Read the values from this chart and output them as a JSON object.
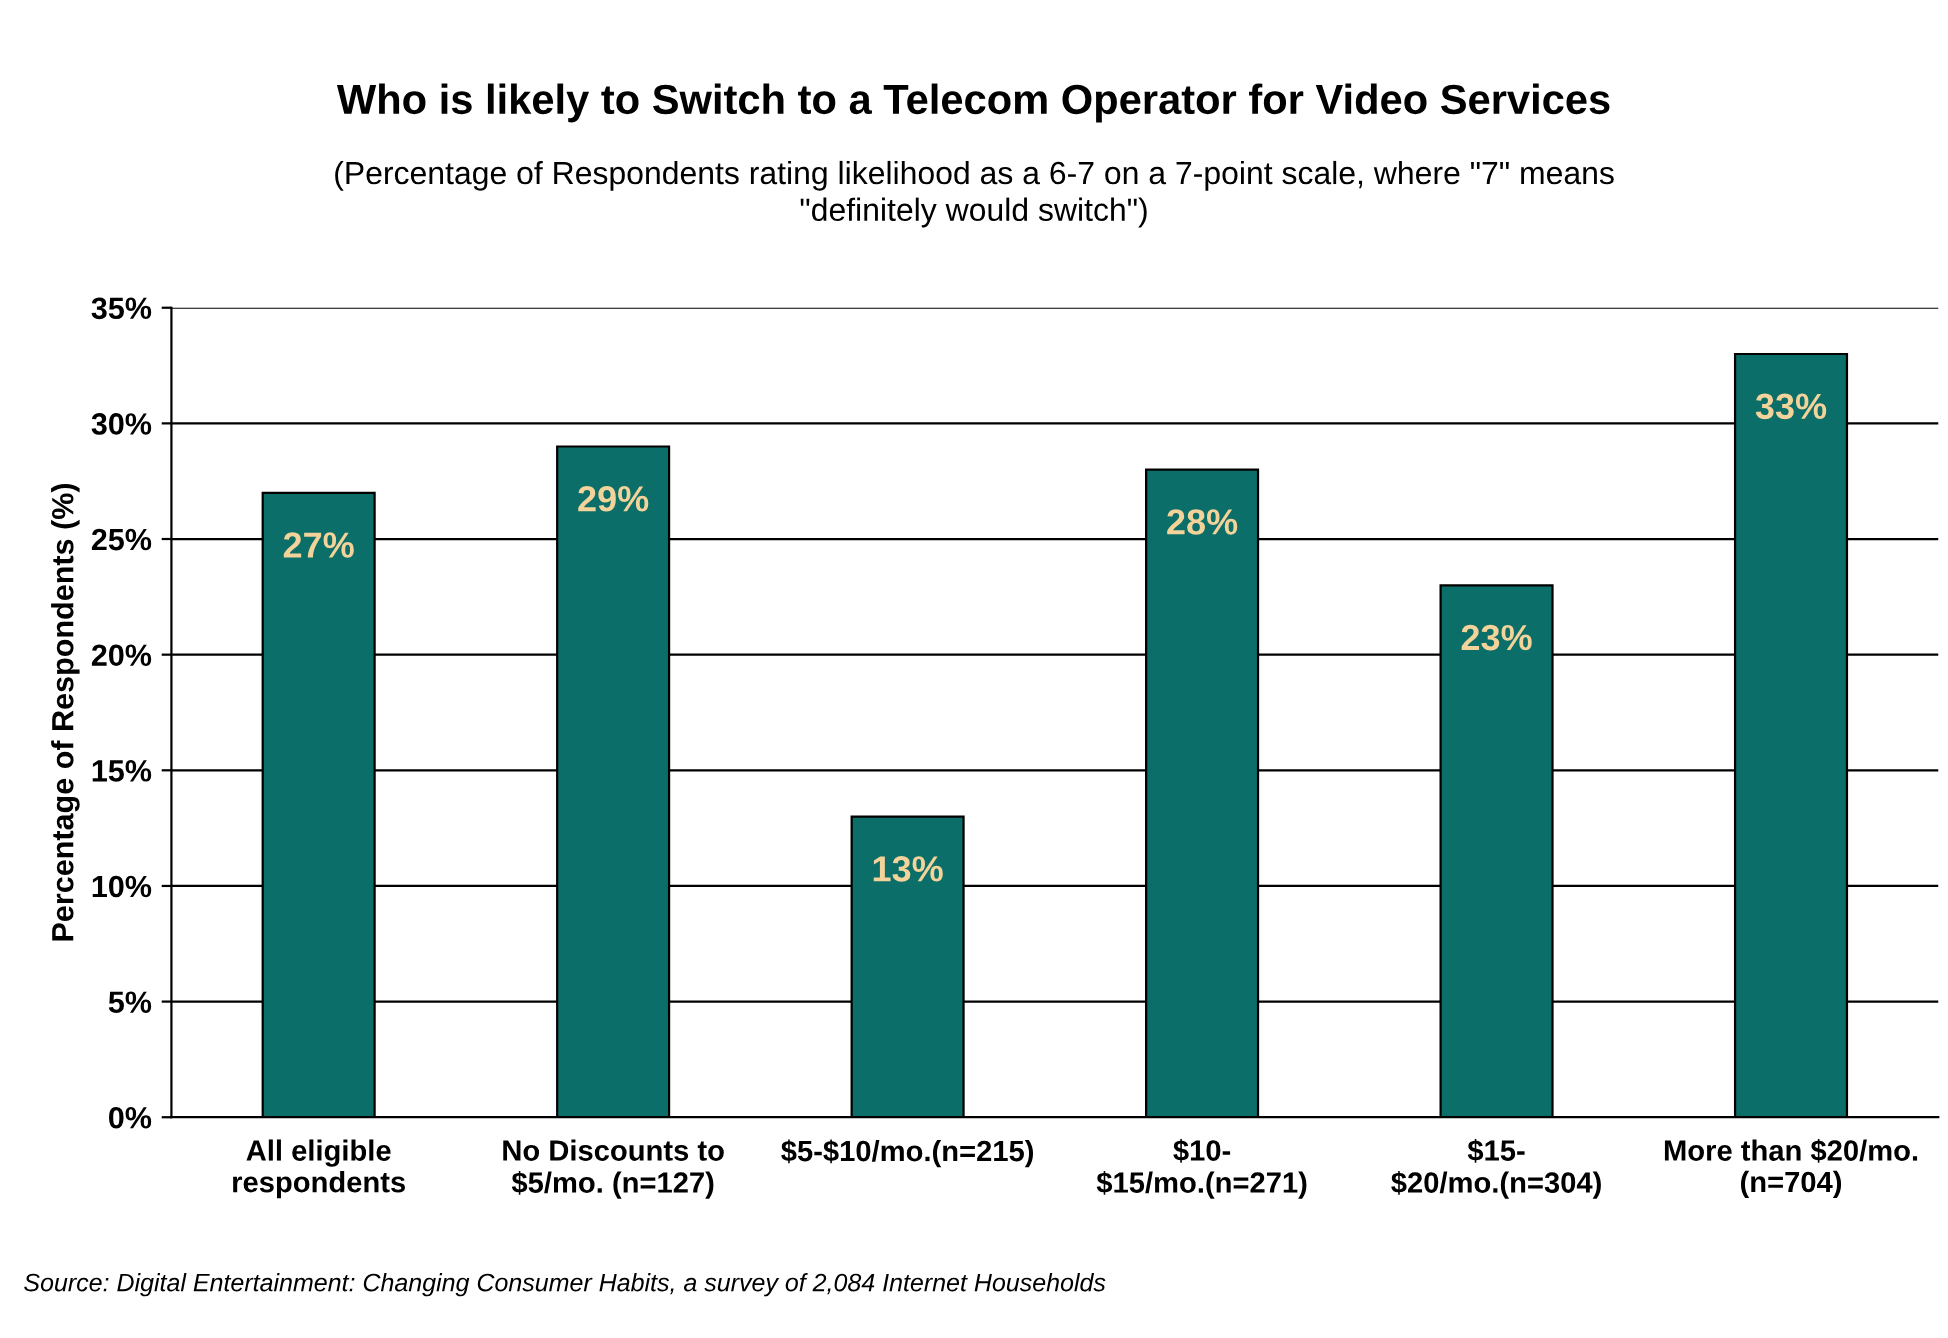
{
  "chart_data": {
    "type": "bar",
    "title": "Who is likely to Switch to a Telecom Operator for Video Services",
    "subtitle": "(Percentage of Respondents rating likelihood as a 6-7 on a 7-point scale, where \"7\" means\n\"definitely would switch\")",
    "ylabel": "Percentage of Respondents (%)",
    "categories": [
      "All eligible\nrespondents",
      "No Discounts to\n$5/mo. (n=127)",
      "$5-$10/mo.(n=215)",
      "$10-\n$15/mo.(n=271)",
      "$15-\n$20/mo.(n=304)",
      "More than $20/mo.\n(n=704)"
    ],
    "values": [
      27,
      29,
      13,
      28,
      23,
      33
    ],
    "value_labels": [
      "27%",
      "29%",
      "13%",
      "28%",
      "23%",
      "33%"
    ],
    "color": "#0b6e68",
    "ylim": [
      0,
      35
    ],
    "yticks": [
      {
        "value": 0,
        "label": "0%"
      },
      {
        "value": 5,
        "label": "5%"
      },
      {
        "value": 10,
        "label": "10%"
      },
      {
        "value": 15,
        "label": "15%"
      },
      {
        "value": 20,
        "label": "20%"
      },
      {
        "value": 25,
        "label": "25%"
      },
      {
        "value": 30,
        "label": "30%"
      },
      {
        "value": 35,
        "label": "35%"
      }
    ],
    "grid": "y",
    "annotations": [
      "Source: Digital Entertainment: Changing Consumer Habits, a survey of 2,084 Internet Households"
    ]
  }
}
